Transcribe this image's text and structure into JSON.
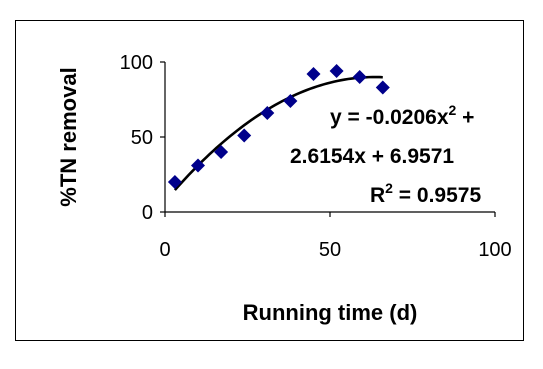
{
  "chart_data": {
    "type": "scatter",
    "xlabel": "Running time (d)",
    "ylabel": "%TN removal",
    "xlim": [
      0,
      100
    ],
    "ylim": [
      0,
      100
    ],
    "x_ticks": [
      "0",
      "50",
      "100"
    ],
    "y_ticks": [
      "0",
      "50",
      "100"
    ],
    "grid": false,
    "series": [
      {
        "marker": "diamond",
        "color": "#00008B",
        "x": [
          3,
          10,
          17,
          24,
          31,
          38,
          45,
          52,
          59,
          66
        ],
        "y": [
          20,
          31,
          40,
          51,
          66,
          74,
          92,
          94,
          90,
          83
        ]
      }
    ],
    "trendline": {
      "type": "polynomial",
      "degree": 2,
      "coefficients": [
        -0.0206,
        2.6154,
        6.9571
      ],
      "x_range": [
        3,
        66
      ],
      "color": "#000000"
    },
    "annotations": {
      "equation_line1_prefix": "y = -0.0206x",
      "equation_line1_exp": "2",
      "equation_line1_suffix": " +",
      "equation_line2": "2.6154x + 6.9571",
      "r2_prefix": "R",
      "r2_exp": "2",
      "r2_suffix": " = 0.9575"
    }
  }
}
